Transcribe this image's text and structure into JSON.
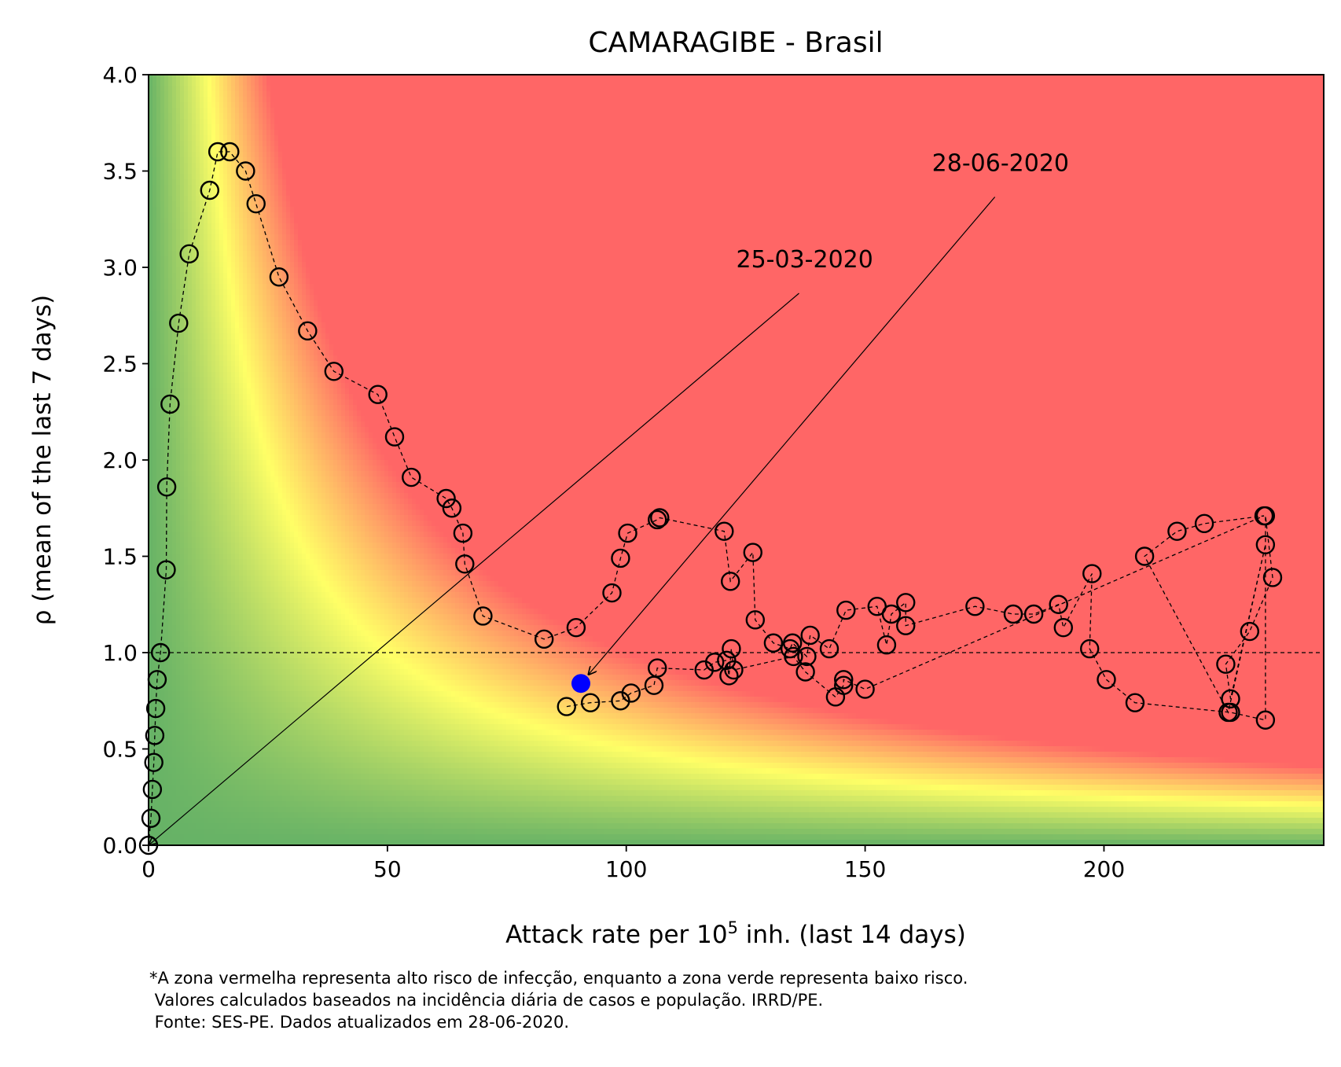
{
  "chart_data": {
    "type": "scatter",
    "title": "CAMARAGIBE - Brasil",
    "xlabel": "Attack rate per 10",
    "xlabel_sup": "5",
    "xlabel_suffix": " inh. (last 14 days)",
    "ylabel": "ρ (mean of the last 7 days)",
    "xlim": [
      0,
      246
    ],
    "ylim": [
      0,
      4.0
    ],
    "x_ticks": [
      0,
      50,
      100,
      150,
      200
    ],
    "x_tick_labels": [
      "0",
      "50",
      "100",
      "150",
      "200"
    ],
    "y_ticks": [
      0,
      0.5,
      1.0,
      1.5,
      2.0,
      2.5,
      3.0,
      3.5,
      4.0
    ],
    "y_tick_labels": [
      "0.0",
      "0.5",
      "1.0",
      "1.5",
      "2.0",
      "2.5",
      "3.0",
      "3.5",
      "4.0"
    ],
    "reference_line_y": 1.0,
    "background": "risk gradient: green (low risk) to yellow to red (high risk), boundary along x·ρ ≈ constant",
    "colors": {
      "green": "#66b266",
      "yellow": "#ffff66",
      "red": "#ff6666",
      "current_point": "#0000ff"
    },
    "series": [
      {
        "marker": "open-circle",
        "line": "dashed",
        "x": [
          0.0,
          0.5,
          0.8,
          1.1,
          1.3,
          1.5,
          1.8,
          2.5,
          3.7,
          3.8,
          4.5,
          6.3,
          8.5,
          12.8,
          14.5,
          17.0,
          20.3,
          22.5,
          27.3,
          33.3,
          38.8,
          48.0,
          51.5,
          55.0,
          62.3,
          63.5,
          65.8,
          66.2,
          70.0,
          82.8,
          89.5,
          97.0,
          98.8,
          100.3,
          106.5,
          107.0,
          120.5,
          121.8,
          126.5,
          127.0,
          130.8,
          134.3,
          134.8,
          137.8,
          138.5,
          142.5,
          146.0,
          152.5,
          154.5,
          155.5,
          158.5,
          158.5,
          173.0,
          181.0,
          185.3,
          190.5,
          191.5,
          197.5,
          197.0,
          200.5,
          206.5,
          226.5,
          233.8,
          233.8,
          235.3,
          230.5,
          225.5,
          226.5,
          233.8,
          226.0,
          208.5,
          215.3,
          221.0,
          233.5,
          150.0,
          145.5,
          145.5,
          143.8,
          137.5,
          135.0,
          122.5,
          122.0,
          121.5,
          121.0,
          118.5,
          116.3,
          106.5,
          105.8,
          101.0,
          98.8,
          92.5,
          87.5
        ],
        "y": [
          0.0,
          0.14,
          0.29,
          0.43,
          0.57,
          0.71,
          0.86,
          1.0,
          1.43,
          1.86,
          2.29,
          2.71,
          3.07,
          3.4,
          3.6,
          3.6,
          3.5,
          3.33,
          2.95,
          2.67,
          2.46,
          2.34,
          2.12,
          1.91,
          1.8,
          1.75,
          1.62,
          1.46,
          1.19,
          1.07,
          1.13,
          1.31,
          1.49,
          1.62,
          1.69,
          1.7,
          1.63,
          1.37,
          1.52,
          1.17,
          1.05,
          1.02,
          1.05,
          0.98,
          1.09,
          1.02,
          1.22,
          1.24,
          1.04,
          1.2,
          1.26,
          1.14,
          1.24,
          1.2,
          1.2,
          1.25,
          1.13,
          1.41,
          1.02,
          0.86,
          0.74,
          0.69,
          0.65,
          1.71,
          1.39,
          1.11,
          0.94,
          0.76,
          1.56,
          0.69,
          1.5,
          1.63,
          1.67,
          1.71,
          0.81,
          0.86,
          0.83,
          0.77,
          0.9,
          0.98,
          0.91,
          1.02,
          0.88,
          0.96,
          0.95,
          0.91,
          0.92,
          0.83,
          0.79,
          0.75,
          0.74,
          0.72
        ]
      },
      {
        "name": "current",
        "marker": "filled-circle",
        "x": [
          90.5
        ],
        "y": [
          0.84
        ]
      }
    ],
    "annotations": [
      {
        "text": "25-03-2020",
        "point": [
          0,
          0
        ],
        "text_pos": [
          123,
          3.0
        ]
      },
      {
        "text": "28-06-2020",
        "point": [
          90.5,
          0.84
        ],
        "text_pos": [
          164,
          3.5
        ]
      }
    ]
  },
  "footnote": {
    "line1": "*A zona vermelha representa alto risco de infecção, enquanto a zona verde representa baixo risco.",
    "line2": " Valores calculados baseados na incidência diária de casos e população. IRRD/PE.",
    "line3": " Fonte: SES-PE. Dados atualizados em 28-06-2020."
  }
}
